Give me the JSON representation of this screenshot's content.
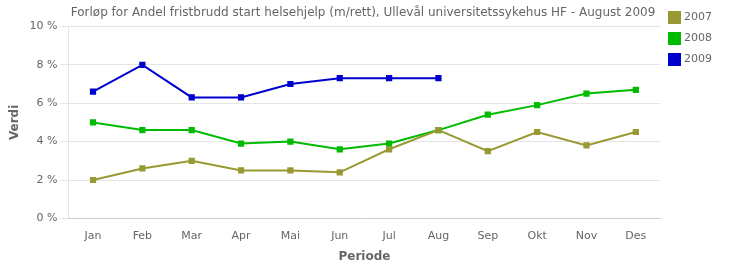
{
  "chart_data": {
    "type": "line",
    "title": "Forløp for Andel fristbrudd start helsehjelp (m/rett), Ullevål universitetssykehus HF - August 2009",
    "x_label": "Periode",
    "y_label": "Verdi",
    "categories": [
      "Jan",
      "Feb",
      "Mar",
      "Apr",
      "Mai",
      "Jun",
      "Jul",
      "Aug",
      "Sep",
      "Okt",
      "Nov",
      "Des"
    ],
    "series": [
      {
        "name": "2007",
        "color": "#999933",
        "values": [
          2.0,
          2.6,
          3.0,
          2.5,
          2.5,
          2.4,
          3.6,
          4.6,
          3.5,
          4.5,
          3.8,
          4.5
        ]
      },
      {
        "name": "2008",
        "color": "#00bb00",
        "values": [
          5.0,
          4.6,
          4.6,
          3.9,
          4.0,
          3.6,
          3.9,
          4.6,
          5.4,
          5.9,
          6.5,
          6.7
        ]
      },
      {
        "name": "2009",
        "color": "#0000cc",
        "values": [
          6.6,
          8.0,
          6.3,
          6.3,
          7.0,
          7.3,
          7.3,
          7.3,
          null,
          null,
          null,
          null
        ]
      }
    ],
    "ylim": [
      0,
      10
    ],
    "yticks": [
      {
        "value": 0,
        "label": "0 %"
      },
      {
        "value": 2,
        "label": "2 %"
      },
      {
        "value": 4,
        "label": "4 %"
      },
      {
        "value": 6,
        "label": "6 %"
      },
      {
        "value": 8,
        "label": "8 %"
      },
      {
        "value": 10,
        "label": "10 %"
      }
    ],
    "grid": "y",
    "legend": "right",
    "marker": "square"
  }
}
